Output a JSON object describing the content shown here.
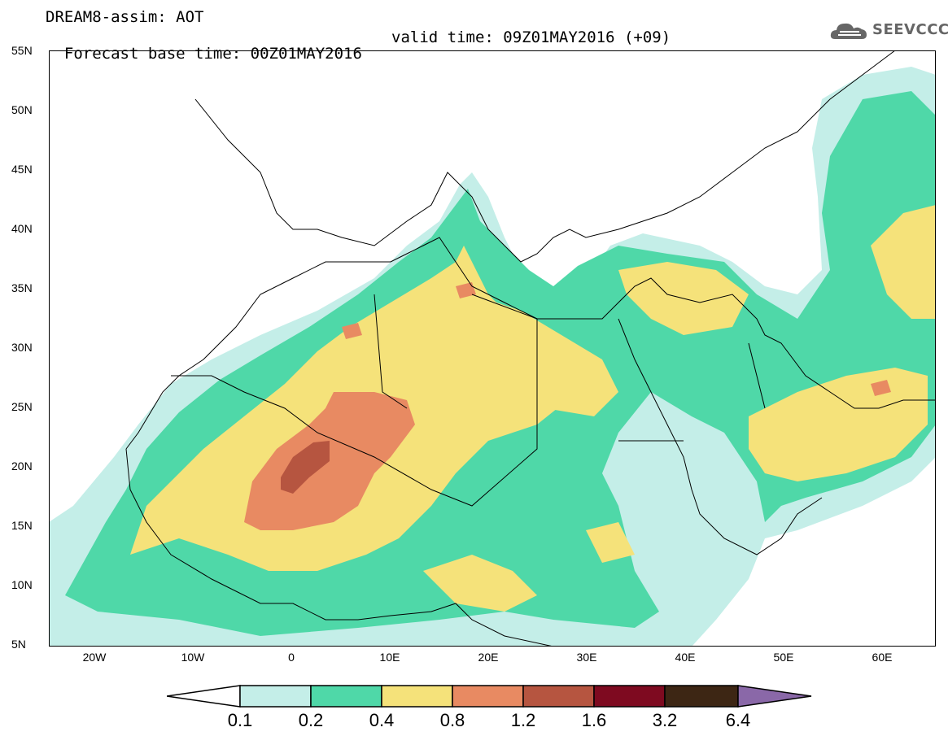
{
  "header": {
    "title": "DREAM8-assim: AOT",
    "base_time": "Forecast base time: 00Z01MAY2016",
    "valid_time": "valid time: 09Z01MAY2016 (+09)"
  },
  "logo": {
    "text": "SEEVCCC",
    "icon": "cloud-icon"
  },
  "map": {
    "lat_labels": [
      "55N",
      "50N",
      "45N",
      "40N",
      "35N",
      "30N",
      "25N",
      "20N",
      "15N",
      "10N",
      "5N"
    ],
    "lon_labels": [
      "20W",
      "10W",
      "0",
      "10E",
      "20E",
      "30E",
      "40E",
      "50E",
      "60E"
    ],
    "lat_range": [
      5,
      55
    ],
    "lon_range": [
      -25,
      65
    ]
  },
  "colorbar": {
    "labels": [
      "0.1",
      "0.2",
      "0.4",
      "0.8",
      "1.2",
      "1.6",
      "3.2",
      "6.4"
    ],
    "colors": [
      "#ffffff",
      "#c4eee8",
      "#4fd8a8",
      "#f5e27a",
      "#e88a62",
      "#b65540",
      "#7e0a20",
      "#3d2614",
      "#8a68a8"
    ]
  },
  "colors": {
    "c1": "#c4eee8",
    "c2": "#4fd8a8",
    "c3": "#f5e27a",
    "c4": "#e88a62",
    "c5": "#b65540",
    "c6": "#8f3f34"
  }
}
